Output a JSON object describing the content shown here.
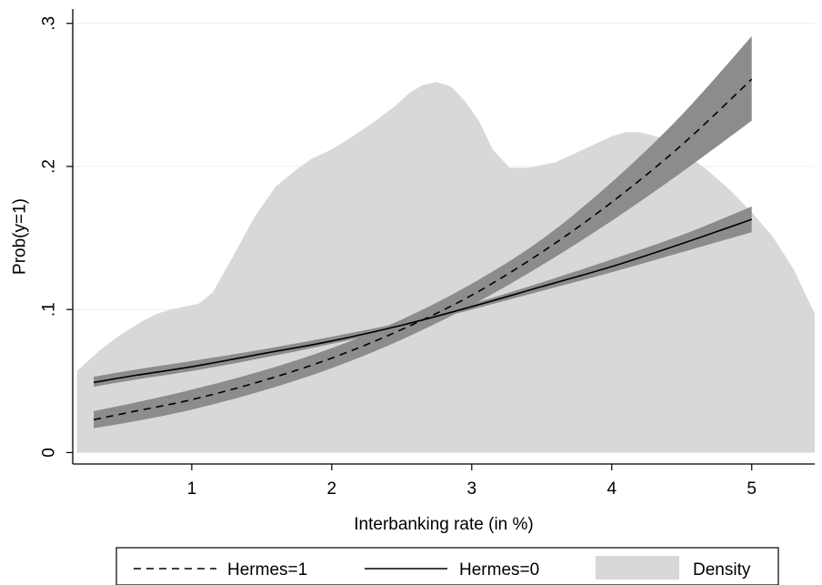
{
  "chart_data": {
    "type": "line",
    "xlabel": "Interbanking rate (in %)",
    "ylabel": "Prob(y=1)",
    "xlim": [
      0.15,
      5.45
    ],
    "ylim": [
      -0.008,
      0.31
    ],
    "x_ticks": [
      1,
      2,
      3,
      4,
      5
    ],
    "x_tick_labels": [
      "1",
      "2",
      "3",
      "4",
      "5"
    ],
    "y_ticks": [
      0,
      0.1,
      0.2,
      0.3
    ],
    "y_tick_labels": [
      "0",
      ".1",
      ".2",
      ".3"
    ],
    "grid": "horizontal",
    "legend_position": "bottom",
    "colors": {
      "density_fill": "#d8d8d8",
      "ci_band": "#8c8c8c",
      "line": "#000000",
      "grid": "#e8eef3"
    },
    "density": {
      "name": "Density",
      "x": [
        0.18,
        0.35,
        0.5,
        0.65,
        0.75,
        0.85,
        0.95,
        1.05,
        1.15,
        1.3,
        1.45,
        1.6,
        1.75,
        1.85,
        2.0,
        2.15,
        2.3,
        2.45,
        2.55,
        2.65,
        2.75,
        2.85,
        2.95,
        3.05,
        3.15,
        3.27,
        3.4,
        3.6,
        3.8,
        4.0,
        4.1,
        4.2,
        4.35,
        4.5,
        4.7,
        4.85,
        5.0,
        5.15,
        5.3,
        5.45
      ],
      "y": [
        0.057,
        0.072,
        0.083,
        0.092,
        0.097,
        0.1,
        0.102,
        0.104,
        0.112,
        0.138,
        0.165,
        0.186,
        0.198,
        0.205,
        0.212,
        0.221,
        0.231,
        0.242,
        0.251,
        0.257,
        0.259,
        0.256,
        0.246,
        0.232,
        0.212,
        0.199,
        0.199,
        0.203,
        0.212,
        0.221,
        0.224,
        0.224,
        0.22,
        0.211,
        0.196,
        0.183,
        0.168,
        0.151,
        0.128,
        0.097
      ]
    },
    "series": [
      {
        "name": "Hermes=1",
        "style": "dashed",
        "x": [
          0.3,
          0.6,
          1.0,
          1.5,
          2.0,
          2.5,
          3.0,
          3.5,
          4.0,
          4.5,
          5.0
        ],
        "y": [
          0.023,
          0.029,
          0.037,
          0.05,
          0.066,
          0.086,
          0.11,
          0.14,
          0.175,
          0.215,
          0.261
        ],
        "lower": [
          0.017,
          0.022,
          0.03,
          0.043,
          0.059,
          0.079,
          0.103,
          0.131,
          0.162,
          0.196,
          0.232
        ],
        "upper": [
          0.029,
          0.035,
          0.044,
          0.057,
          0.073,
          0.093,
          0.118,
          0.149,
          0.189,
          0.236,
          0.291
        ]
      },
      {
        "name": "Hermes=0",
        "style": "solid",
        "x": [
          0.3,
          0.6,
          1.0,
          1.5,
          2.0,
          2.5,
          3.0,
          3.5,
          4.0,
          4.5,
          5.0
        ],
        "y": [
          0.049,
          0.054,
          0.06,
          0.069,
          0.078,
          0.089,
          0.102,
          0.116,
          0.13,
          0.146,
          0.163
        ],
        "lower": [
          0.046,
          0.051,
          0.057,
          0.066,
          0.076,
          0.087,
          0.1,
          0.113,
          0.126,
          0.14,
          0.154
        ],
        "upper": [
          0.053,
          0.058,
          0.064,
          0.072,
          0.081,
          0.091,
          0.104,
          0.119,
          0.135,
          0.152,
          0.172
        ]
      }
    ],
    "legend": {
      "items": [
        {
          "label": "Hermes=1",
          "style": "dashed"
        },
        {
          "label": "Hermes=0",
          "style": "solid"
        },
        {
          "label": "Density",
          "style": "area"
        }
      ]
    }
  }
}
